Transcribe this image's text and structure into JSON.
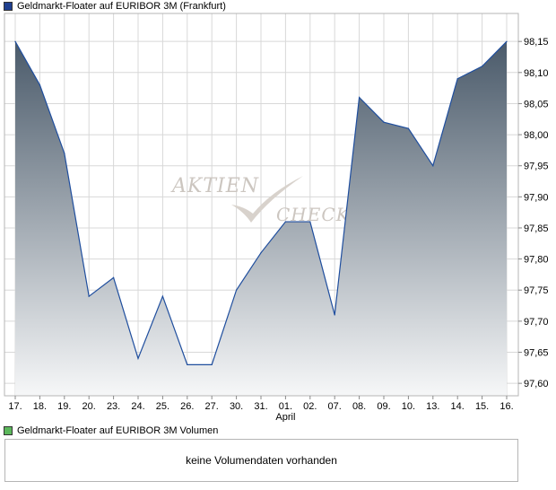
{
  "chart_data": {
    "type": "area",
    "title": "Geldmarkt-Floater auf EURIBOR 3M (Frankfurt)",
    "x": [
      "17.",
      "18.",
      "19.",
      "20.",
      "23.",
      "24.",
      "25.",
      "26.",
      "27.",
      "30.",
      "31.",
      "01.",
      "02.",
      "07.",
      "08.",
      "09.",
      "10.",
      "13.",
      "14.",
      "15.",
      "16."
    ],
    "x_month_label": "April",
    "x_month_label_index": 11,
    "series": [
      {
        "values": [
          98.15,
          98.08,
          97.97,
          97.74,
          97.77,
          97.64,
          97.74,
          97.63,
          97.63,
          97.75,
          97.81,
          97.86,
          97.86,
          97.71,
          98.06,
          98.02,
          98.01,
          97.95,
          98.09,
          98.11,
          98.15
        ]
      }
    ],
    "y_ticks": [
      "98,15",
      "98,10",
      "98,05",
      "98,00",
      "97,95",
      "97,90",
      "97,85",
      "97,80",
      "97,75",
      "97,70",
      "97,65",
      "97,60"
    ],
    "ylim": [
      97.58,
      98.195
    ],
    "y_axis_position": "right",
    "grid": true,
    "line_color": "#1f4e9e",
    "fill_top_color": "#4a5a6a",
    "fill_bottom_color": "#f6f7f8",
    "legend_color": "#1f3f8f"
  },
  "watermark": {
    "line1": "AKTIEN",
    "line2": "CHECK"
  },
  "volume": {
    "legend_label": "Geldmarkt-Floater auf EURIBOR 3M Volumen",
    "legend_color": "#5cb85c",
    "empty_text": "keine Volumendaten vorhanden"
  }
}
